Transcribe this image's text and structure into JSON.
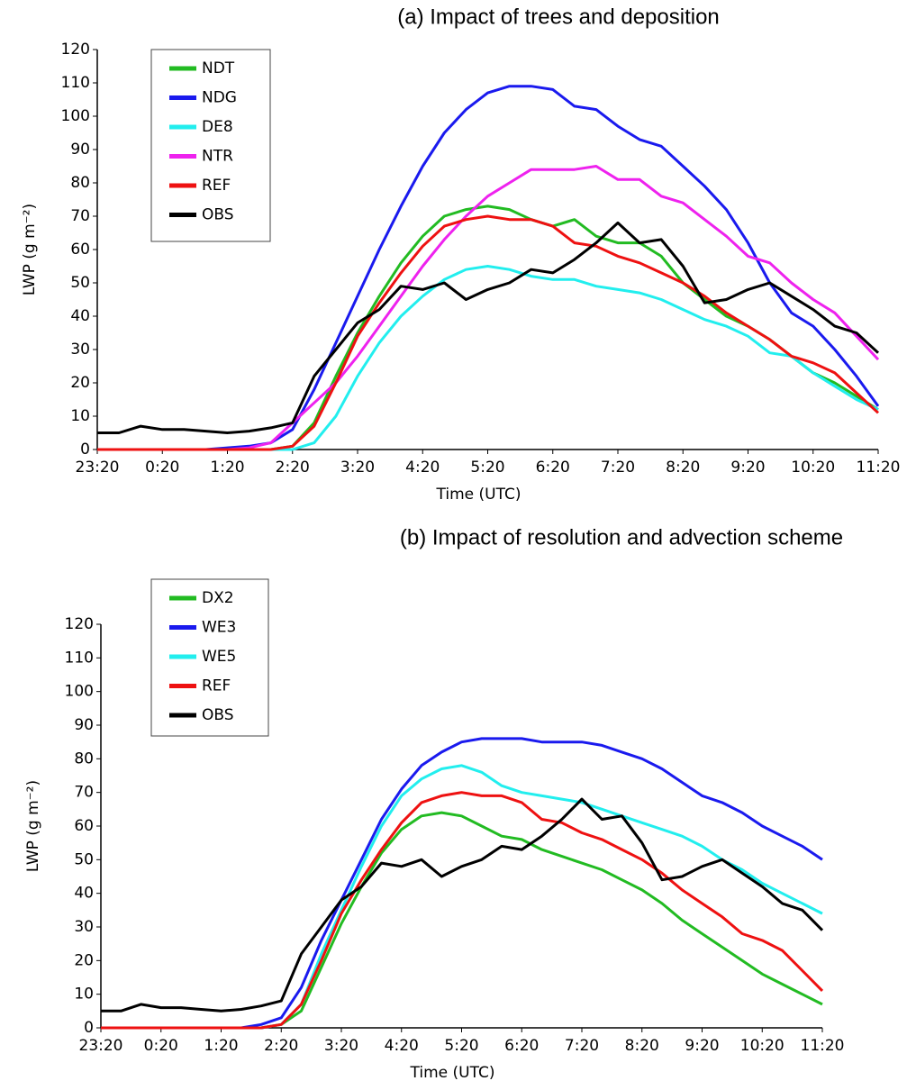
{
  "chart_data": [
    {
      "type": "line",
      "title": "(a) Impact of trees and deposition",
      "xlabel": "Time (UTC)",
      "ylabel": "LWP (g m⁻²)",
      "categories": [
        "23:20",
        null,
        null,
        "0:20",
        null,
        null,
        "1:20",
        null,
        null,
        "2:20",
        null,
        null,
        "3:20",
        null,
        null,
        "4:20",
        null,
        null,
        "5:20",
        null,
        null,
        "6:20",
        null,
        null,
        "7:20",
        null,
        null,
        "8:20",
        null,
        null,
        "9:20",
        null,
        null,
        "10:20",
        null,
        null,
        "11:20"
      ],
      "ylim": [
        0,
        120
      ],
      "yticks": [
        0,
        10,
        20,
        30,
        40,
        50,
        60,
        70,
        80,
        90,
        100,
        110,
        120
      ],
      "grid": false,
      "legend": "upper left",
      "series": [
        {
          "name": "NDT",
          "color": "#22bb22",
          "values": [
            0,
            0,
            0,
            0,
            0,
            0,
            0,
            0,
            0,
            1,
            8,
            22,
            35,
            46,
            56,
            64,
            70,
            72,
            73,
            72,
            69,
            67,
            69,
            64,
            62,
            62,
            58,
            50,
            45,
            40,
            37,
            33,
            28,
            23,
            20,
            16,
            12
          ]
        },
        {
          "name": "NDG",
          "color": "#1a1aee",
          "values": [
            0,
            0,
            0,
            0,
            0,
            0,
            0.5,
            1,
            2,
            6,
            18,
            32,
            46,
            60,
            73,
            85,
            95,
            102,
            107,
            109,
            109,
            108,
            103,
            102,
            97,
            93,
            91,
            85,
            79,
            72,
            62,
            50,
            41,
            37,
            30,
            22,
            13
          ]
        },
        {
          "name": "DE8",
          "color": "#22eeee",
          "values": [
            0,
            0,
            0,
            0,
            0,
            0,
            0,
            0,
            0,
            0,
            2,
            10,
            22,
            32,
            40,
            46,
            51,
            54,
            55,
            54,
            52,
            51,
            51,
            49,
            48,
            47,
            45,
            42,
            39,
            37,
            34,
            29,
            28,
            23,
            19,
            15,
            12
          ]
        },
        {
          "name": "NTR",
          "color": "#ee22ee",
          "values": [
            0,
            0,
            0,
            0,
            0,
            0,
            0,
            0.5,
            2,
            8,
            14,
            20,
            28,
            37,
            46,
            55,
            63,
            70,
            76,
            80,
            84,
            84,
            84,
            85,
            81,
            81,
            76,
            74,
            69,
            64,
            58,
            56,
            50,
            45,
            41,
            34,
            27
          ]
        },
        {
          "name": "REF",
          "color": "#ee1111",
          "values": [
            0,
            0,
            0,
            0,
            0,
            0,
            0,
            0,
            0,
            1,
            7,
            20,
            34,
            44,
            53,
            61,
            67,
            69,
            70,
            69,
            69,
            67,
            62,
            61,
            58,
            56,
            53,
            50,
            46,
            41,
            37,
            33,
            28,
            26,
            23,
            17,
            11
          ]
        },
        {
          "name": "OBS",
          "color": "#000000",
          "values": [
            5,
            5,
            7,
            6,
            6,
            5.5,
            5,
            5.5,
            6.5,
            8,
            22,
            30,
            38,
            42,
            49,
            48,
            50,
            45,
            48,
            50,
            54,
            53,
            57,
            62,
            68,
            62,
            63,
            55,
            44,
            45,
            48,
            50,
            46,
            42,
            37,
            35,
            29
          ]
        }
      ]
    },
    {
      "type": "line",
      "title": "(b) Impact of resolution and advection scheme",
      "xlabel": "Time (UTC)",
      "ylabel": "LWP (g m⁻²)",
      "categories": [
        "23:20",
        null,
        null,
        "0:20",
        null,
        null,
        "1:20",
        null,
        null,
        "2:20",
        null,
        null,
        "3:20",
        null,
        null,
        "4:20",
        null,
        null,
        "5:20",
        null,
        null,
        "6:20",
        null,
        null,
        "7:20",
        null,
        null,
        "8:20",
        null,
        null,
        "9:20",
        null,
        null,
        "10:20",
        null,
        null,
        "11:20"
      ],
      "ylim": [
        0,
        120
      ],
      "yticks": [
        0,
        10,
        20,
        30,
        40,
        50,
        60,
        70,
        80,
        90,
        100,
        110,
        120
      ],
      "grid": false,
      "legend": "upper left",
      "series": [
        {
          "name": "DX2",
          "color": "#22bb22",
          "values": [
            0,
            0,
            0,
            0,
            0,
            0,
            0,
            0,
            0,
            1,
            5,
            18,
            31,
            42,
            52,
            59,
            63,
            64,
            63,
            60,
            57,
            56,
            53,
            51,
            49,
            47,
            44,
            41,
            37,
            32,
            28,
            24,
            20,
            16,
            13,
            10,
            7
          ]
        },
        {
          "name": "WE3",
          "color": "#1a1aee",
          "values": [
            0,
            0,
            0,
            0,
            0,
            0,
            0,
            0,
            1,
            3,
            12,
            26,
            38,
            50,
            62,
            71,
            78,
            82,
            85,
            86,
            86,
            86,
            85,
            85,
            85,
            84,
            82,
            80,
            77,
            73,
            69,
            67,
            64,
            60,
            57,
            54,
            50
          ]
        },
        {
          "name": "WE5",
          "color": "#22eeee",
          "values": [
            0,
            0,
            0,
            0,
            0,
            0,
            0,
            0,
            0,
            1,
            7,
            22,
            35,
            48,
            60,
            69,
            74,
            77,
            78,
            76,
            72,
            70,
            69,
            68,
            67,
            65,
            63,
            61,
            59,
            57,
            54,
            50,
            47,
            43,
            40,
            37,
            34
          ]
        },
        {
          "name": "REF",
          "color": "#ee1111",
          "values": [
            0,
            0,
            0,
            0,
            0,
            0,
            0,
            0,
            0,
            1,
            7,
            20,
            34,
            44,
            53,
            61,
            67,
            69,
            70,
            69,
            69,
            67,
            62,
            61,
            58,
            56,
            53,
            50,
            46,
            41,
            37,
            33,
            28,
            26,
            23,
            17,
            11
          ]
        },
        {
          "name": "OBS",
          "color": "#000000",
          "values": [
            5,
            5,
            7,
            6,
            6,
            5.5,
            5,
            5.5,
            6.5,
            8,
            22,
            30,
            38,
            42,
            49,
            48,
            50,
            45,
            48,
            50,
            54,
            53,
            57,
            62,
            68,
            62,
            63,
            55,
            44,
            45,
            48,
            50,
            46,
            42,
            37,
            35,
            29
          ]
        }
      ]
    }
  ]
}
